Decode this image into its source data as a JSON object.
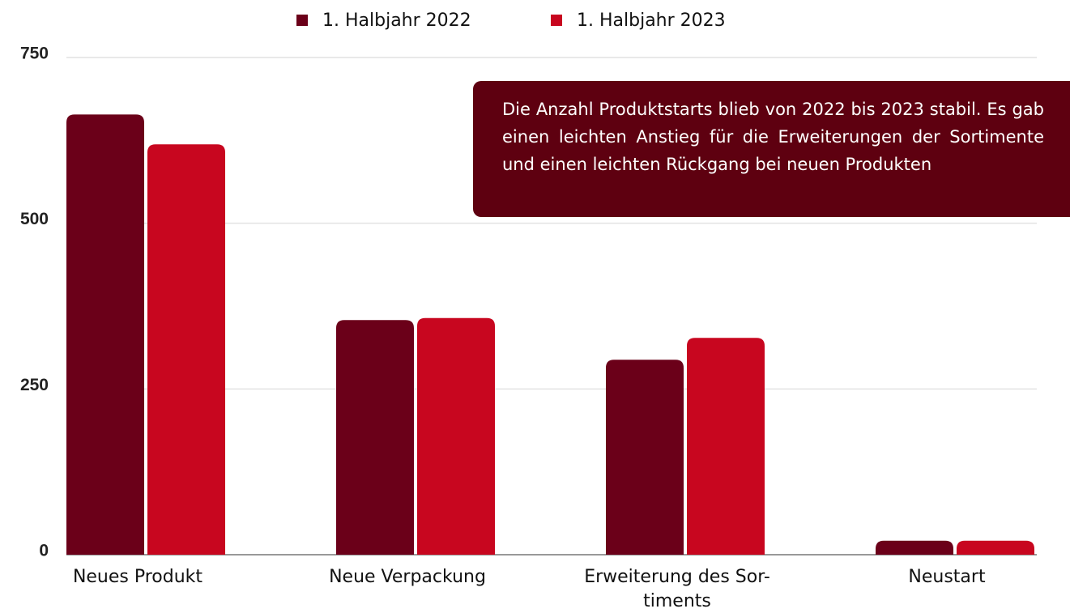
{
  "chart_data": {
    "type": "bar",
    "categories": [
      "Neues Produkt",
      "Neue Verpackung",
      "Erweiterung des Sor-\ntiments",
      "Neustart"
    ],
    "series": [
      {
        "name": "1. Halbjahr 2022",
        "color": "#6b0019",
        "values": [
          664,
          354,
          294,
          21
        ]
      },
      {
        "name": "1. Halbjahr 2023",
        "color": "#c8061f",
        "values": [
          619,
          357,
          327,
          21
        ]
      }
    ],
    "ylim": [
      0,
      750
    ],
    "yticks": [
      0,
      250,
      500,
      750
    ],
    "grid": true,
    "legend": "top",
    "annotation": "Die Anzahl Produktstarts blieb von 2022 bis 2023 stabil. Es gab einen leichten Anstieg für die Erweiterungen der Sortimente und einen leichten Rückgang bei neuen Produkten"
  }
}
